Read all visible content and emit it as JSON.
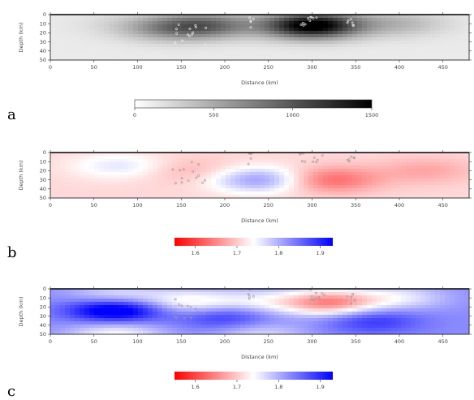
{
  "panels": [
    {
      "letter": "a",
      "xlabel": "Distance (km)",
      "ylabel": "Depth (km)",
      "xticks": [
        "0",
        "50",
        "100",
        "150",
        "200",
        "250",
        "300",
        "350",
        "400",
        "450"
      ],
      "yticks": [
        "0",
        "10",
        "20",
        "30",
        "40",
        "50"
      ],
      "colorbar": {
        "ticks": [
          "0",
          "500",
          "1000",
          "1500"
        ],
        "colors": [
          "#ffffff",
          "#000000"
        ]
      },
      "colorscale": "grayscale",
      "blobs": [
        {
          "x": 300,
          "z": 12,
          "v": 1.0
        },
        {
          "x": 180,
          "z": 12,
          "v": 0.45
        },
        {
          "x": 135,
          "z": 15,
          "v": 0.3
        },
        {
          "x": 400,
          "z": 10,
          "v": 0.2
        },
        {
          "x": 80,
          "z": 10,
          "v": 0.05
        }
      ],
      "base_value": 0.08
    },
    {
      "letter": "b",
      "xlabel": "Distance (km)",
      "ylabel": "Depth (km)",
      "xticks": [
        "0",
        "50",
        "100",
        "150",
        "200",
        "250",
        "300",
        "350",
        "400",
        "450"
      ],
      "yticks": [
        "0",
        "10",
        "20",
        "30",
        "40",
        "50"
      ],
      "colorbar": {
        "ticks": [
          "1.6",
          "1.7",
          "1.8",
          "1.9"
        ],
        "colors": [
          "#ff0000",
          "#ffffff",
          "#0000ff"
        ]
      },
      "colorscale": "diverging",
      "blobs": [
        {
          "x": 240,
          "z": 30,
          "v": 0.55
        },
        {
          "x": 80,
          "z": 15,
          "v": 0.25
        },
        {
          "x": 320,
          "z": 30,
          "v": -0.45
        },
        {
          "x": 160,
          "z": 20,
          "v": -0.15
        },
        {
          "x": 430,
          "z": 20,
          "v": -0.2
        }
      ],
      "base_value": -0.15
    },
    {
      "letter": "c",
      "xlabel": "Distance (km)",
      "ylabel": "Depth (km)",
      "xticks": [
        "0",
        "50",
        "100",
        "150",
        "200",
        "250",
        "300",
        "350",
        "400",
        "450"
      ],
      "yticks": [
        "0",
        "10",
        "20",
        "30",
        "40",
        "50"
      ],
      "colorbar": {
        "ticks": [
          "1.6",
          "1.7",
          "1.8",
          "1.9"
        ],
        "colors": [
          "#ff0000",
          "#ffffff",
          "#0000ff"
        ]
      },
      "colorscale": "diverging",
      "blobs": [
        {
          "x": 75,
          "z": 22,
          "v": 0.9
        },
        {
          "x": 320,
          "z": 15,
          "v": -0.9
        },
        {
          "x": 160,
          "z": 15,
          "v": -0.5
        },
        {
          "x": 75,
          "z": 10,
          "v": -0.5
        },
        {
          "x": 240,
          "z": 15,
          "v": -0.35
        },
        {
          "x": 400,
          "z": 10,
          "v": -0.35
        },
        {
          "x": 75,
          "z": 50,
          "v": -0.45
        },
        {
          "x": 240,
          "z": 50,
          "v": -0.3
        },
        {
          "x": 200,
          "z": 30,
          "v": 0.4
        },
        {
          "x": 370,
          "z": 35,
          "v": 0.35
        }
      ],
      "base_value": 0.45
    }
  ]
}
